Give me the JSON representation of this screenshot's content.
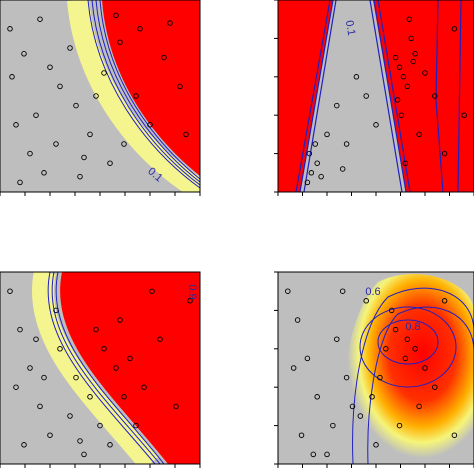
{
  "chart_data": [
    {
      "type": "scatter",
      "xlim": [
        0,
        1
      ],
      "ylim": [
        0,
        1
      ],
      "xticks": [
        0,
        0.125,
        0.25,
        0.375,
        0.5,
        0.625,
        0.75,
        0.875,
        1
      ],
      "yticks": [
        0,
        0.2,
        0.4,
        0.6,
        0.8,
        1
      ],
      "x": [
        0.05,
        0.06,
        0.12,
        0.2,
        0.08,
        0.15,
        0.3,
        0.38,
        0.22,
        0.45,
        0.52,
        0.6,
        0.68,
        0.75,
        0.82,
        0.9,
        0.7,
        0.55,
        0.4,
        0.28,
        0.18,
        0.1,
        0.35,
        0.48,
        0.62,
        0.85,
        0.93,
        0.58,
        0.25,
        0.42
      ],
      "y": [
        0.85,
        0.6,
        0.72,
        0.9,
        0.35,
        0.2,
        0.55,
        0.45,
        0.1,
        0.3,
        0.62,
        0.78,
        0.5,
        0.35,
        0.7,
        0.55,
        0.85,
        0.15,
        0.08,
        0.25,
        0.4,
        0.05,
        0.75,
        0.5,
        0.25,
        0.88,
        0.3,
        0.92,
        0.65,
        0.18
      ],
      "color": "#000000",
      "annotations": [
        "0.1"
      ]
    },
    {
      "type": "scatter",
      "xlim": [
        0,
        1
      ],
      "ylim": [
        0,
        1
      ],
      "xticks": [
        0,
        0.125,
        0.25,
        0.375,
        0.5,
        0.625,
        0.75,
        0.875,
        1
      ],
      "yticks": [
        0,
        0.2,
        0.4,
        0.6,
        0.8,
        1
      ],
      "x": [
        0.15,
        0.17,
        0.2,
        0.22,
        0.16,
        0.25,
        0.3,
        0.35,
        0.4,
        0.45,
        0.6,
        0.62,
        0.64,
        0.66,
        0.7,
        0.68,
        0.63,
        0.72,
        0.8,
        0.85,
        0.9,
        0.65,
        0.67,
        0.61,
        0.75,
        0.33,
        0.5,
        0.95,
        0.19,
        0.69
      ],
      "y": [
        0.05,
        0.1,
        0.15,
        0.08,
        0.2,
        0.3,
        0.45,
        0.25,
        0.6,
        0.5,
        0.7,
        0.65,
        0.6,
        0.55,
        0.72,
        0.8,
        0.4,
        0.3,
        0.5,
        0.2,
        0.85,
        0.15,
        0.9,
        0.48,
        0.62,
        0.12,
        0.35,
        0.4,
        0.25,
        0.68
      ],
      "color": "#000000",
      "annotations": [
        "0.1"
      ]
    },
    {
      "type": "scatter",
      "xlim": [
        0,
        1
      ],
      "ylim": [
        0,
        1
      ],
      "xticks": [
        0,
        0.125,
        0.25,
        0.375,
        0.5,
        0.625,
        0.75,
        0.875,
        1
      ],
      "yticks": [
        0,
        0.2,
        0.4,
        0.6,
        0.8,
        1
      ],
      "x": [
        0.05,
        0.1,
        0.15,
        0.2,
        0.25,
        0.12,
        0.3,
        0.38,
        0.45,
        0.5,
        0.55,
        0.6,
        0.65,
        0.72,
        0.8,
        0.88,
        0.95,
        0.42,
        0.35,
        0.28,
        0.08,
        0.18,
        0.48,
        0.58,
        0.68,
        0.76,
        0.52,
        0.22,
        0.4,
        0.62
      ],
      "y": [
        0.9,
        0.7,
        0.5,
        0.3,
        0.15,
        0.1,
        0.6,
        0.45,
        0.35,
        0.2,
        0.1,
        0.75,
        0.55,
        0.4,
        0.65,
        0.3,
        0.85,
        0.05,
        0.25,
        0.8,
        0.4,
        0.65,
        0.7,
        0.5,
        0.2,
        0.9,
        0.6,
        0.45,
        0.12,
        0.35
      ],
      "color": "#000000",
      "annotations": [
        "0.9"
      ]
    },
    {
      "type": "scatter",
      "xlim": [
        0,
        1
      ],
      "ylim": [
        0,
        1
      ],
      "xticks": [
        0,
        0.125,
        0.25,
        0.375,
        0.5,
        0.625,
        0.75,
        0.875,
        1
      ],
      "yticks": [
        0,
        0.2,
        0.4,
        0.6,
        0.8,
        1
      ],
      "x": [
        0.05,
        0.1,
        0.15,
        0.2,
        0.12,
        0.25,
        0.3,
        0.35,
        0.42,
        0.5,
        0.55,
        0.6,
        0.65,
        0.7,
        0.75,
        0.8,
        0.62,
        0.58,
        0.66,
        0.45,
        0.38,
        0.28,
        0.18,
        0.08,
        0.52,
        0.72,
        0.85,
        0.9,
        0.33,
        0.48
      ],
      "y": [
        0.9,
        0.75,
        0.55,
        0.35,
        0.15,
        0.05,
        0.65,
        0.45,
        0.25,
        0.1,
        0.6,
        0.7,
        0.55,
        0.6,
        0.5,
        0.4,
        0.2,
        0.8,
        0.65,
        0.85,
        0.3,
        0.2,
        0.05,
        0.5,
        0.45,
        0.3,
        0.85,
        0.15,
        0.9,
        0.35
      ],
      "color": "#000000",
      "annotations": [
        "0.6",
        "0.8"
      ]
    }
  ]
}
